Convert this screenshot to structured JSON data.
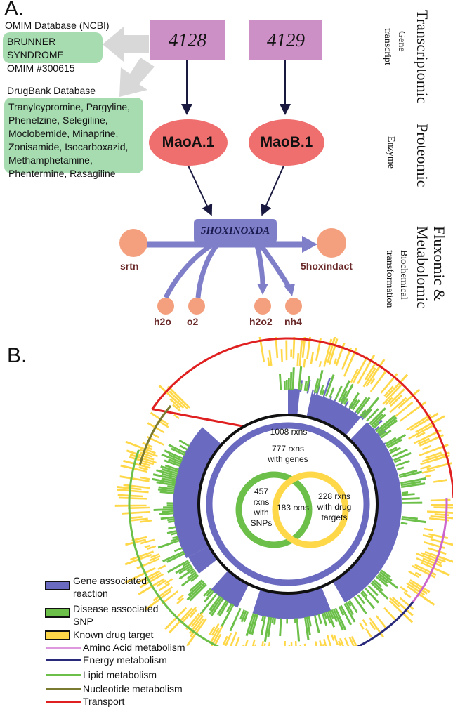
{
  "panel_a": {
    "letter": "A.",
    "omim_label": "OMIM Database (NCBI)",
    "omim_lines": [
      "BRUNNER SYNDROME",
      "OMIM #300615"
    ],
    "drugbank_label": "DrugBank Database",
    "drug_lines": [
      "Tranylcypromine, Pargyline,",
      "Phenelzine, Selegiline,",
      "Moclobemide, Minaprine,",
      "Zonisamide, Isocarboxazid,",
      "Methamphetamine,",
      "Phentermine, Rasagiline"
    ],
    "genes": [
      "4128",
      "4129"
    ],
    "enzymes": [
      "MaoA.1",
      "MaoB.1"
    ],
    "reaction": "5HOXINOXDA",
    "metabolites": {
      "srtn": "srtn",
      "product": "5hoxindact",
      "h2o": "h2o",
      "o2": "o2",
      "h2o2": "h2o2",
      "nh4": "nh4"
    },
    "layer_titles": {
      "transcriptomic": "Transcriptomic",
      "gene_transcript": [
        "Gene",
        "transcript"
      ],
      "proteomic": "Proteomic",
      "enzyme": "Enzyme",
      "fluxomic": [
        "Fluxomic &",
        "Metabolomic"
      ],
      "biochem": [
        "Biochemical",
        "transformation"
      ]
    },
    "colors": {
      "gene": "#cc8fc6",
      "enzyme": "#ef6f6f",
      "reaction": "#7f7fc9",
      "metabolite": "#f4a07e",
      "db_box": "#a6dcb0"
    }
  },
  "panel_b": {
    "letter": "B.",
    "center": {
      "total": "1008 rxns",
      "genes": [
        "777 rxns",
        "with genes"
      ],
      "snps": [
        "457",
        "rxns",
        "with",
        "SNPs"
      ],
      "overlap": "183 rxns",
      "drugs": [
        "228 rxns",
        "with drug",
        "targets"
      ]
    },
    "colors": {
      "gene": "#6a6ac0",
      "snp": "#6cc04a",
      "drug": "#ffd84a",
      "amino": "#cc66cc",
      "energy": "#2a2a7a",
      "lipid": "#6cc04a",
      "nucleotide": "#7a7a30",
      "transport": "#e02020"
    }
  },
  "legend": [
    {
      "key": "gene",
      "type": "box",
      "lines": [
        "Gene associated",
        "reaction"
      ],
      "fill": "#6a6ac0",
      "border": "#111111"
    },
    {
      "key": "snp",
      "type": "box",
      "lines": [
        "Disease associated",
        "SNP"
      ],
      "fill": "#6cc04a",
      "border": "#111111"
    },
    {
      "key": "drug",
      "type": "box",
      "lines": [
        "Known drug target"
      ],
      "fill": "#ffd84a",
      "border": "#111111"
    },
    {
      "key": "amino",
      "type": "line",
      "lines": [
        "Amino Acid metabolism"
      ],
      "color": "#dd99dd"
    },
    {
      "key": "energy",
      "type": "line",
      "lines": [
        "Energy metabolism"
      ],
      "color": "#2a2a7a"
    },
    {
      "key": "lipid",
      "type": "line",
      "lines": [
        "Lipid metabolism"
      ],
      "color": "#6cc04a"
    },
    {
      "key": "nucleotide",
      "type": "line",
      "lines": [
        "Nucleotide metabolism"
      ],
      "color": "#7a7a30"
    },
    {
      "key": "transport",
      "type": "line",
      "lines": [
        "Transport"
      ],
      "color": "#e02020"
    }
  ]
}
